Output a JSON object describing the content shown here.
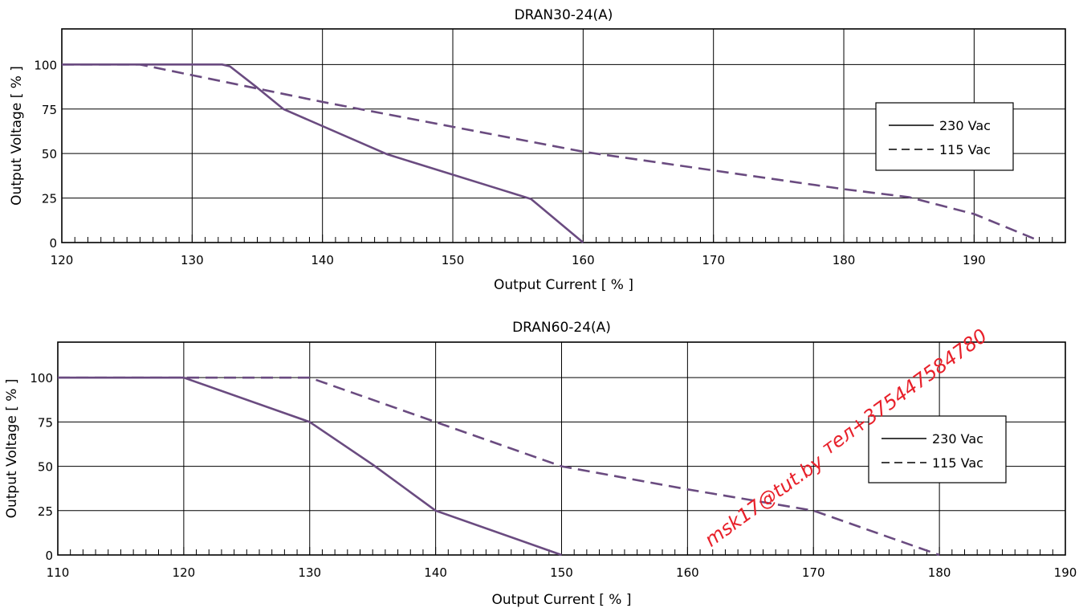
{
  "chart_data": [
    {
      "type": "line",
      "title": "DRAN30-24(A)",
      "xlabel": "Output Current [ % ]",
      "ylabel": "Output Voltage  [ % ]",
      "xlim": [
        120,
        197
      ],
      "ylim": [
        0,
        120
      ],
      "xticks": [
        120,
        130,
        140,
        150,
        160,
        170,
        180,
        190
      ],
      "yticks": [
        0,
        25,
        50,
        75,
        100
      ],
      "grid": true,
      "legend_position": "right",
      "series": [
        {
          "name": "230 Vac",
          "style": "solid",
          "x": [
            120,
            132.3,
            132.9,
            135,
            137,
            145,
            156,
            160
          ],
          "y": [
            100,
            100,
            99,
            87,
            75,
            49.5,
            24.5,
            0
          ]
        },
        {
          "name": "115 Vac",
          "style": "dashed",
          "x": [
            120,
            126,
            130,
            140,
            150,
            160,
            170,
            180,
            185,
            190,
            195
          ],
          "y": [
            100,
            100,
            94,
            79,
            65,
            51,
            40.5,
            30,
            25.5,
            16,
            1
          ]
        }
      ]
    },
    {
      "type": "line",
      "title": "DRAN60-24(A)",
      "xlabel": "Output Current [ % ]",
      "ylabel": "Output Voltage  [ % ]",
      "xlim": [
        110,
        190
      ],
      "ylim": [
        0,
        120
      ],
      "xticks": [
        110,
        120,
        130,
        140,
        150,
        160,
        170,
        180,
        190
      ],
      "yticks": [
        0,
        25,
        50,
        75,
        100
      ],
      "grid": true,
      "legend_position": "right",
      "series": [
        {
          "name": "230 Vac",
          "style": "solid",
          "x": [
            110,
            120,
            130,
            135,
            140,
            150
          ],
          "y": [
            100,
            100,
            75,
            51,
            25,
            0
          ]
        },
        {
          "name": "115 Vac",
          "style": "dashed",
          "x": [
            110,
            120,
            130,
            140,
            150,
            160,
            170,
            180
          ],
          "y": [
            100,
            100,
            100,
            75,
            50,
            37,
            25,
            0
          ]
        }
      ]
    }
  ],
  "colors": {
    "series": "#6a4b80",
    "axis": "#000000",
    "grid": "#000000",
    "watermark": "#e8202a"
  },
  "watermark": {
    "lines": [
      "msk17@tut.by",
      "тел+375447584780"
    ]
  }
}
